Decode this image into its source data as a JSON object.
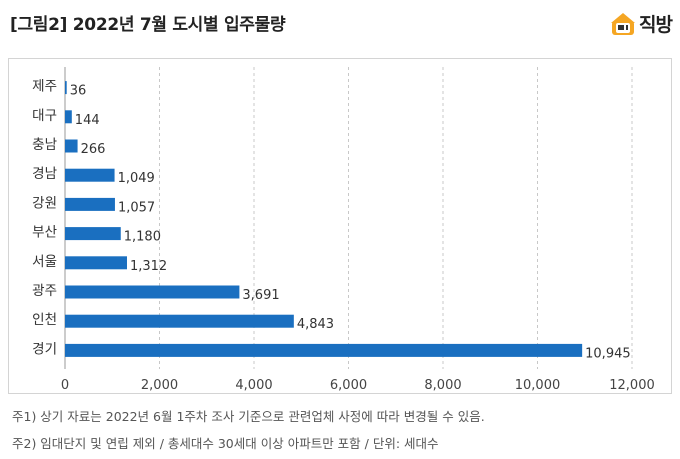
{
  "header": {
    "title": "[그림2] 2022년 7월 도시별 입주물량",
    "brand": "직방"
  },
  "chart_data": {
    "type": "bar",
    "orientation": "horizontal",
    "categories": [
      "제주",
      "대구",
      "충남",
      "경남",
      "강원",
      "부산",
      "서울",
      "광주",
      "인천",
      "경기"
    ],
    "values": [
      36,
      144,
      266,
      1049,
      1057,
      1180,
      1312,
      3691,
      4843,
      10945
    ],
    "value_labels": [
      "36",
      "144",
      "266",
      "1,049",
      "1,057",
      "1,180",
      "1,312",
      "3,691",
      "4,843",
      "10,945"
    ],
    "xlim": [
      0,
      12000
    ],
    "x_ticks": [
      0,
      2000,
      4000,
      6000,
      8000,
      10000,
      12000
    ],
    "x_tick_labels": [
      "0",
      "2,000",
      "4,000",
      "6,000",
      "8,000",
      "10,000",
      "12,000"
    ],
    "grid": "vertical-dashed",
    "bar_color": "#1a6fc0"
  },
  "notes": [
    "주1) 상기 자료는 2022년 6월 1주차 조사 기준으로 관련업체 사정에 따라 변경될 수 있음.",
    "주2) 임대단지 및 연립 제외 / 총세대수 30세대 이상 아파트만 포함 / 단위: 세대수"
  ]
}
